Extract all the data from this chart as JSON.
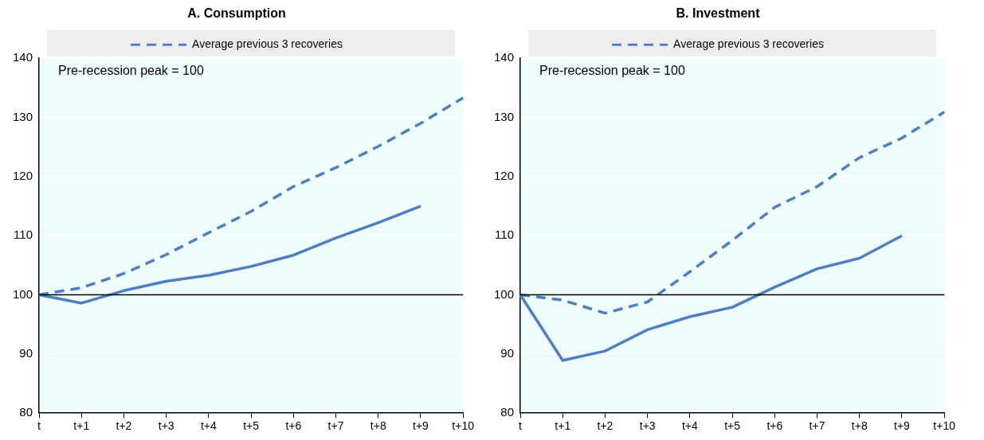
{
  "chart_data": [
    {
      "type": "line",
      "title": "A. Consumption",
      "categories": [
        "t",
        "t+1",
        "t+2",
        "t+3",
        "t+4",
        "t+5",
        "t+6",
        "t+7",
        "t+8",
        "t+9",
        "t+10"
      ],
      "series": [
        {
          "color": "#4f7fc0",
          "line_style": "solid",
          "values": [
            100,
            98.6,
            100.7,
            102.3,
            103.3,
            104.8,
            106.7,
            109.6,
            112.2,
            115,
            null
          ]
        },
        {
          "name": "Average previous 3 recoveries",
          "color": "#4f7fc0",
          "line_style": "dashed",
          "values": [
            100,
            101.2,
            103.6,
            106.8,
            110.5,
            114.1,
            118.3,
            121.5,
            125.1,
            129,
            133.3
          ]
        }
      ],
      "ylim": [
        80,
        140
      ],
      "yticks": [
        80,
        90,
        100,
        110,
        120,
        130,
        140
      ],
      "grid": "y",
      "legend": "top",
      "marker": "none",
      "ref_lines": [
        {
          "axis": "y",
          "value": 100,
          "color": "#000000"
        }
      ],
      "annotations": [
        "Pre-recession peak = 100"
      ]
    },
    {
      "type": "line",
      "title": "B. Investment",
      "categories": [
        "t",
        "t+1",
        "t+2",
        "t+3",
        "t+4",
        "t+5",
        "t+6",
        "t+7",
        "t+8",
        "t+9",
        "t+10"
      ],
      "series": [
        {
          "color": "#4f7fc0",
          "line_style": "solid",
          "values": [
            100,
            88.9,
            90.5,
            94.1,
            96.3,
            97.9,
            101.3,
            104.4,
            106.2,
            110,
            null
          ]
        },
        {
          "name": "Average previous 3 recoveries",
          "color": "#4f7fc0",
          "line_style": "dashed",
          "values": [
            100,
            99.1,
            96.9,
            98.8,
            103.9,
            109.2,
            114.8,
            118.3,
            123.2,
            126.5,
            130.9
          ]
        }
      ],
      "ylim": [
        80,
        140
      ],
      "yticks": [
        80,
        90,
        100,
        110,
        120,
        130,
        140
      ],
      "grid": "y",
      "legend": "top",
      "marker": "none",
      "ref_lines": [
        {
          "axis": "y",
          "value": 100,
          "color": "#000000"
        }
      ],
      "annotations": [
        "Pre-recession peak = 100"
      ]
    }
  ]
}
